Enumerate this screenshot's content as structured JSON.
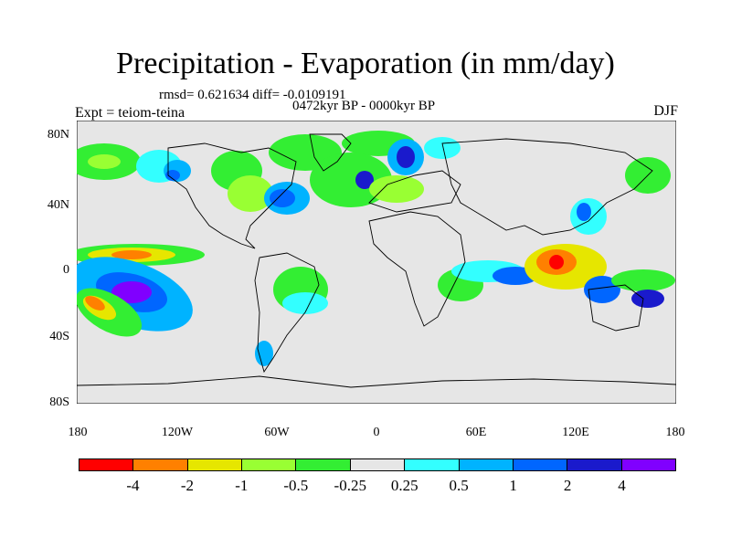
{
  "title": "Precipitation - Evaporation (in mm/day)",
  "stats": "rmsd= 0.621634 diff= -0.0109191",
  "period": "0472kyr BP - 0000kyr BP",
  "experiment": "Expt = teiom-teina",
  "season": "DJF",
  "y_ticks": [
    "80N",
    "40N",
    "0",
    "40S",
    "80S"
  ],
  "x_ticks": [
    "180",
    "120W",
    "60W",
    "0",
    "60E",
    "120E",
    "180"
  ],
  "colorbar": {
    "labels": [
      "-4",
      "-2",
      "-1",
      "-0.5",
      "-0.25",
      "0.25",
      "0.5",
      "1",
      "2",
      "4"
    ],
    "colors": [
      "#ff0000",
      "#ff8000",
      "#e6e600",
      "#99ff33",
      "#33ee33",
      "#e6e6e6",
      "#33ffff",
      "#00b3ff",
      "#0066ff",
      "#1a1acc",
      "#8000ff"
    ]
  },
  "map": {
    "background": "#e6e6e6",
    "coast_color": "#000000"
  }
}
